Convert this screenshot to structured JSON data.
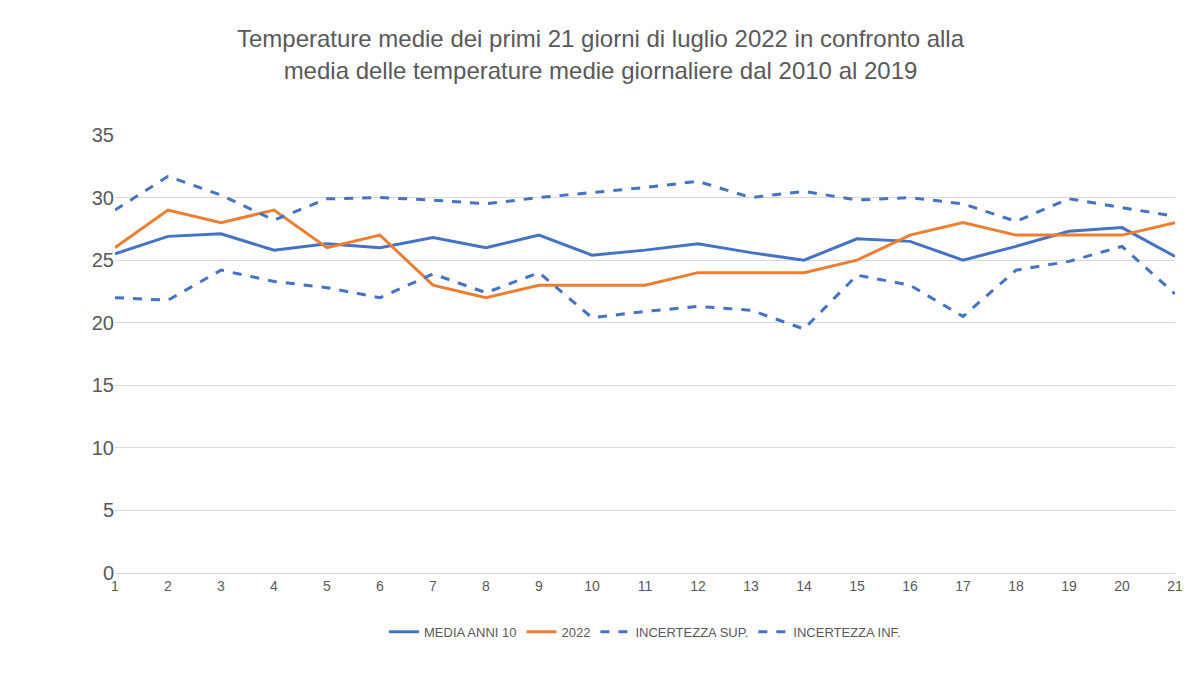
{
  "chart_data": {
    "type": "line",
    "title": "Temperature medie dei primi 21 giorni di luglio 2022 in confronto alla media delle temperature medie giornaliere dal 2010 al 2019",
    "categories": [
      1,
      2,
      3,
      4,
      5,
      6,
      7,
      8,
      9,
      10,
      11,
      12,
      13,
      14,
      15,
      16,
      17,
      18,
      19,
      20,
      21
    ],
    "series": [
      {
        "name": "MEDIA ANNI 10",
        "color": "#4472c4",
        "line_style": "solid",
        "values": [
          25.5,
          26.9,
          27.1,
          25.8,
          26.3,
          26.0,
          26.8,
          26.0,
          27.0,
          25.4,
          25.8,
          26.3,
          25.6,
          25.0,
          26.7,
          26.5,
          25.0,
          26.1,
          27.3,
          27.6,
          25.3
        ]
      },
      {
        "name": "2022",
        "color": "#ed7d31",
        "line_style": "solid",
        "values": [
          26,
          29,
          28,
          29,
          26,
          27,
          23,
          22,
          23,
          23,
          23,
          24,
          24,
          24,
          25,
          27,
          28,
          27,
          27,
          27,
          28
        ]
      },
      {
        "name": "INCERTEZZA SUP.",
        "color": "#4472c4",
        "line_style": "dashed",
        "values": [
          29.0,
          31.7,
          30.2,
          28.2,
          29.9,
          30.0,
          29.8,
          29.5,
          30.0,
          30.4,
          30.8,
          31.3,
          30.0,
          30.5,
          29.8,
          30.0,
          29.5,
          28.1,
          29.9,
          29.2,
          28.5
        ]
      },
      {
        "name": "INCERTEZZA INF.",
        "color": "#4472c4",
        "line_style": "dashed",
        "values": [
          22.0,
          21.8,
          24.2,
          23.3,
          22.8,
          22.0,
          23.9,
          22.4,
          24.0,
          20.4,
          20.9,
          21.3,
          21.0,
          19.5,
          23.8,
          23.0,
          20.5,
          24.2,
          24.9,
          26.1,
          22.3
        ]
      }
    ],
    "ylim": [
      0,
      35
    ],
    "yticks": [
      0,
      5,
      10,
      15,
      20,
      25,
      30,
      35
    ],
    "grid": true,
    "legend": "bottom"
  }
}
